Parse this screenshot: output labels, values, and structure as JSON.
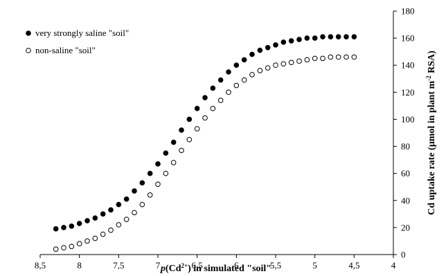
{
  "chart_data": {
    "type": "scatter",
    "x_axis": {
      "label_italic": "p",
      "label_rest": "(Cd",
      "label_sup": "2+",
      "label_tail": ") in simulated \"soil\"",
      "range": [
        8.5,
        4
      ],
      "reversed": true,
      "ticks": [
        "8,5",
        "8",
        "7,5",
        "7",
        "6,5",
        "6",
        "5,5",
        "5",
        "4,5",
        "4"
      ],
      "tick_values": [
        8.5,
        8,
        7.5,
        7,
        6.5,
        6,
        5.5,
        5,
        4.5,
        4
      ]
    },
    "y_axis": {
      "label_pre": "Cd uptake rate (µmol in plant m",
      "label_sup": "-2",
      "label_post": " RSA)",
      "range": [
        0,
        180
      ],
      "ticks": [
        "0",
        "20",
        "40",
        "60",
        "80",
        "100",
        "120",
        "140",
        "160",
        "180"
      ],
      "tick_values": [
        0,
        20,
        40,
        60,
        80,
        100,
        120,
        140,
        160,
        180
      ],
      "position": "right"
    },
    "grid": false,
    "legend": {
      "position": "top-left"
    },
    "series": [
      {
        "name": "very strongly saline \"soil\"",
        "marker": "filled-circle",
        "x": [
          8.3,
          8.2,
          8.1,
          8.0,
          7.9,
          7.8,
          7.7,
          7.6,
          7.5,
          7.4,
          7.3,
          7.2,
          7.1,
          7.0,
          6.9,
          6.8,
          6.7,
          6.6,
          6.5,
          6.4,
          6.3,
          6.2,
          6.1,
          6.0,
          5.9,
          5.8,
          5.7,
          5.6,
          5.5,
          5.4,
          5.3,
          5.2,
          5.1,
          5.0,
          4.9,
          4.8,
          4.7,
          4.6,
          4.5
        ],
        "y": [
          19,
          20,
          21,
          23,
          25,
          27,
          30,
          33,
          37,
          41,
          47,
          53,
          60,
          67,
          75,
          83,
          92,
          100,
          108,
          116,
          123,
          129,
          135,
          140,
          144,
          148,
          151,
          153,
          155,
          157,
          158,
          159,
          160,
          160,
          161,
          161,
          161,
          161,
          161
        ]
      },
      {
        "name": "non-saline \"soil\"",
        "marker": "open-circle",
        "x": [
          8.3,
          8.2,
          8.1,
          8.0,
          7.9,
          7.8,
          7.7,
          7.6,
          7.5,
          7.4,
          7.3,
          7.2,
          7.1,
          7.0,
          6.9,
          6.8,
          6.7,
          6.6,
          6.5,
          6.4,
          6.3,
          6.2,
          6.1,
          6.0,
          5.9,
          5.8,
          5.7,
          5.6,
          5.5,
          5.4,
          5.3,
          5.2,
          5.1,
          5.0,
          4.9,
          4.8,
          4.7,
          4.6,
          4.5
        ],
        "y": [
          4,
          5,
          6,
          8,
          10,
          12,
          15,
          18,
          22,
          26,
          31,
          37,
          44,
          52,
          60,
          68,
          77,
          85,
          93,
          101,
          108,
          114,
          120,
          125,
          129,
          133,
          136,
          138,
          140,
          141,
          142,
          143,
          144,
          145,
          145,
          146,
          146,
          146,
          146
        ]
      }
    ]
  }
}
